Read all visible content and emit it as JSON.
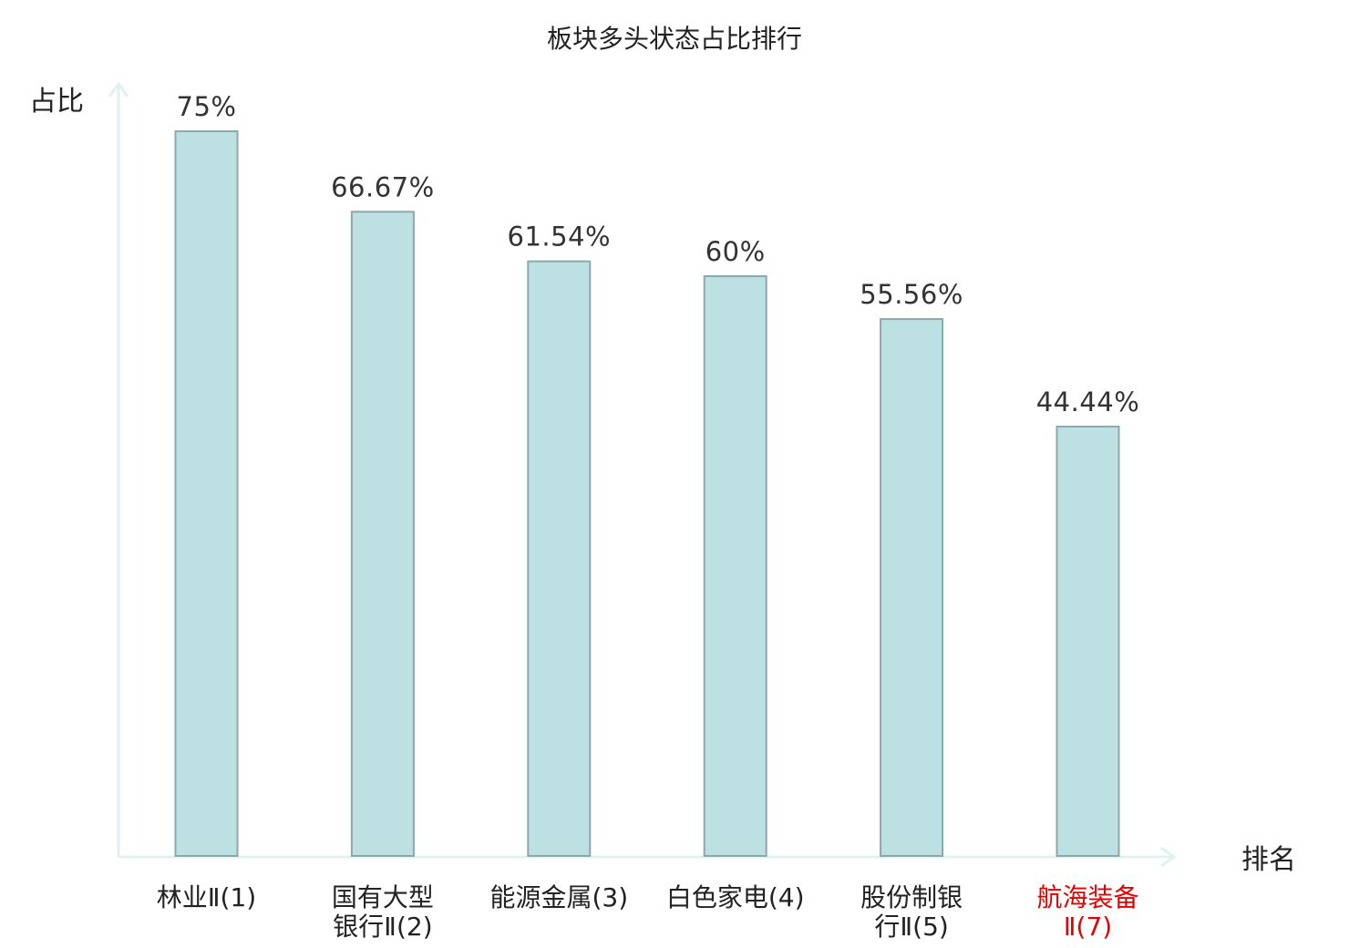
{
  "chart_data": {
    "type": "bar",
    "title": "板块多头状态占比排行",
    "xlabel": "排名",
    "ylabel": "占比",
    "ylim": [
      0,
      80
    ],
    "categories": [
      [
        "林业Ⅱ(1)"
      ],
      [
        "国有大型",
        "银行Ⅱ(2)"
      ],
      [
        "能源金属(3)"
      ],
      [
        "白色家电(4)"
      ],
      [
        "股份制银",
        "行Ⅱ(5)"
      ],
      [
        "航海装备",
        "Ⅱ(7)"
      ]
    ],
    "values": [
      75,
      66.67,
      61.54,
      60,
      55.56,
      44.44
    ],
    "value_labels": [
      "75%",
      "66.67%",
      "61.54%",
      "60%",
      "55.56%",
      "44.44%"
    ],
    "label_colors": [
      "#222222",
      "#222222",
      "#222222",
      "#222222",
      "#222222",
      "#e60000"
    ],
    "colors": {
      "bar_fill": "#bde0e2",
      "bar_stroke": "#8aa9ab",
      "axis": "#dff2ef"
    },
    "grid": false,
    "legend": "none"
  }
}
